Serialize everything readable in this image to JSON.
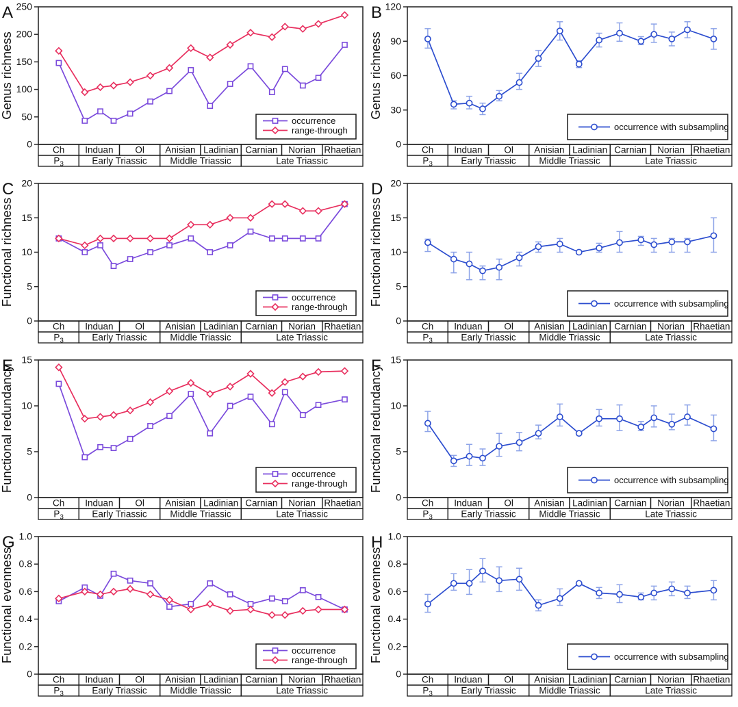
{
  "figure": {
    "colors": {
      "occurrence": "#7B4BDC",
      "range_through": "#E8305F",
      "subsampling": "#2D4ECF",
      "error_bar": "#8EA4E8",
      "frame": "#2b2b2b",
      "table_border": "#1b1b1b"
    },
    "x_axis": {
      "stages": [
        "Ch",
        "Induan",
        "Ol",
        "Anisian",
        "Ladinian",
        "Carnian",
        "Norian",
        "Rhaetian"
      ],
      "epochs": [
        {
          "label": "P₃",
          "span": [
            0,
            1
          ]
        },
        {
          "label": "Early Triassic",
          "span": [
            1,
            3
          ]
        },
        {
          "label": "Middle Triassic",
          "span": [
            3,
            5
          ]
        },
        {
          "label": "Late Triassic",
          "span": [
            5,
            8
          ]
        }
      ],
      "point_positions": [
        0.063,
        0.143,
        0.191,
        0.232,
        0.283,
        0.345,
        0.404,
        0.47,
        0.529,
        0.591,
        0.654,
        0.72,
        0.76,
        0.815,
        0.863,
        0.944
      ]
    },
    "legend_labels": {
      "occurrence": "occurrence",
      "range_through": "range-through",
      "subsampling": "occurrence with subsampling"
    }
  },
  "chart_data": [
    {
      "panel": "A",
      "type": "line",
      "ylabel": "Genus richness",
      "ylim": [
        0,
        250
      ],
      "ytick_labels": [
        "0",
        "50",
        "100",
        "150",
        "200",
        "250"
      ],
      "series": [
        {
          "name": "occurrence",
          "marker": "square",
          "color_key": "occurrence",
          "values": [
            148,
            43,
            60,
            43,
            56,
            78,
            97,
            135,
            70,
            110,
            142,
            95,
            137,
            107,
            121,
            181
          ]
        },
        {
          "name": "range-through",
          "marker": "diamond",
          "color_key": "range_through",
          "values": [
            170,
            95,
            104,
            107,
            113,
            125,
            139,
            175,
            158,
            181,
            203,
            195,
            214,
            210,
            219,
            235
          ]
        }
      ]
    },
    {
      "panel": "B",
      "type": "line",
      "ylabel": "Genus richness",
      "ylim": [
        0,
        120
      ],
      "ytick_labels": [
        "0",
        "30",
        "60",
        "90",
        "120"
      ],
      "series": [
        {
          "name": "occurrence with subsampling",
          "marker": "circle",
          "color_key": "subsampling",
          "values": [
            92,
            35,
            36,
            31,
            42,
            54,
            75,
            99,
            70,
            91,
            97,
            90,
            96,
            92,
            100,
            92
          ],
          "err_lo": [
            84,
            31,
            31,
            26,
            38,
            48,
            68,
            91,
            67,
            85,
            90,
            87,
            89,
            86,
            93,
            83
          ],
          "err_hi": [
            101,
            38,
            42,
            36,
            47,
            62,
            82,
            107,
            73,
            97,
            106,
            94,
            105,
            98,
            107,
            101
          ]
        }
      ]
    },
    {
      "panel": "C",
      "type": "line",
      "ylabel": "Functional richness",
      "ylim": [
        0,
        20
      ],
      "ytick_labels": [
        "0",
        "5",
        "10",
        "15",
        "20"
      ],
      "series": [
        {
          "name": "occurrence",
          "marker": "square",
          "color_key": "occurrence",
          "values": [
            12,
            10,
            11,
            8,
            9,
            10,
            11,
            12,
            10,
            11,
            13,
            12,
            12,
            12,
            12,
            17
          ]
        },
        {
          "name": "range-through",
          "marker": "diamond",
          "color_key": "range_through",
          "values": [
            12,
            11,
            12,
            12,
            12,
            12,
            12,
            14,
            14,
            15,
            15,
            17,
            17,
            16,
            16,
            17
          ]
        }
      ]
    },
    {
      "panel": "D",
      "type": "line",
      "ylabel": "Functional richness",
      "ylim": [
        0,
        20
      ],
      "ytick_labels": [
        "0",
        "5",
        "10",
        "15",
        "20"
      ],
      "series": [
        {
          "name": "occurrence with subsampling",
          "marker": "circle",
          "color_key": "subsampling",
          "values": [
            11.4,
            9.0,
            8.3,
            7.3,
            7.8,
            9.2,
            10.8,
            11.2,
            10.0,
            10.6,
            11.4,
            11.8,
            11.1,
            11.5,
            11.5,
            12.4
          ],
          "err_lo": [
            10.1,
            7.0,
            6.0,
            6.0,
            6.0,
            8.0,
            10.0,
            10.0,
            null,
            10.0,
            10.0,
            11.0,
            10.0,
            10.0,
            10.0,
            10.0
          ],
          "err_hi": [
            11.9,
            10.0,
            10.0,
            8.0,
            9.0,
            10.0,
            11.5,
            12.0,
            null,
            11.3,
            13.0,
            12.3,
            12.0,
            12.0,
            12.0,
            15.0
          ]
        }
      ]
    },
    {
      "panel": "E",
      "type": "line",
      "ylabel": "Functional redundancy",
      "ylim": [
        0,
        15
      ],
      "ytick_labels": [
        "0",
        "5",
        "10",
        "15"
      ],
      "series": [
        {
          "name": "occurrence",
          "marker": "square",
          "color_key": "occurrence",
          "values": [
            12.4,
            4.4,
            5.5,
            5.4,
            6.4,
            7.8,
            8.9,
            11.3,
            7.0,
            10.0,
            11.0,
            8.0,
            11.5,
            9.0,
            10.1,
            10.7
          ]
        },
        {
          "name": "range-through",
          "marker": "diamond",
          "color_key": "range_through",
          "values": [
            14.2,
            8.6,
            8.8,
            9.0,
            9.5,
            10.4,
            11.6,
            12.5,
            11.3,
            12.1,
            13.5,
            11.4,
            12.6,
            13.2,
            13.7,
            13.8
          ]
        }
      ]
    },
    {
      "panel": "F",
      "type": "line",
      "ylabel": "Functional redundancy",
      "ylim": [
        0,
        15
      ],
      "ytick_labels": [
        "0",
        "5",
        "10",
        "15"
      ],
      "series": [
        {
          "name": "occurrence with subsampling",
          "marker": "circle",
          "color_key": "subsampling",
          "values": [
            8.1,
            4.0,
            4.5,
            4.3,
            5.6,
            6.0,
            7.0,
            8.8,
            7.0,
            8.6,
            8.6,
            7.7,
            8.7,
            8.0,
            8.8,
            7.5
          ],
          "err_lo": [
            7.2,
            3.4,
            3.5,
            3.5,
            4.5,
            5.1,
            6.4,
            7.8,
            null,
            7.8,
            7.3,
            7.3,
            7.7,
            7.4,
            7.9,
            6.2
          ],
          "err_hi": [
            9.4,
            4.6,
            5.8,
            5.3,
            7.0,
            7.1,
            7.9,
            10.2,
            null,
            9.6,
            10.1,
            8.3,
            10.0,
            9.1,
            10.1,
            9.0
          ]
        }
      ]
    },
    {
      "panel": "G",
      "type": "line",
      "ylabel": "Functional evenness",
      "ylim": [
        0,
        1.0
      ],
      "ytick_labels": [
        "0",
        "0.2",
        "0.4",
        "0.6",
        "0.8",
        "1.0"
      ],
      "series": [
        {
          "name": "occurrence",
          "marker": "square",
          "color_key": "occurrence",
          "values": [
            0.53,
            0.63,
            0.57,
            0.73,
            0.68,
            0.66,
            0.49,
            0.51,
            0.66,
            0.58,
            0.51,
            0.55,
            0.53,
            0.61,
            0.56,
            0.47
          ]
        },
        {
          "name": "range-through",
          "marker": "diamond",
          "color_key": "range_through",
          "values": [
            0.55,
            0.6,
            0.58,
            0.6,
            0.62,
            0.58,
            0.54,
            0.47,
            0.51,
            0.46,
            0.47,
            0.43,
            0.43,
            0.46,
            0.47,
            0.47
          ]
        }
      ]
    },
    {
      "panel": "H",
      "type": "line",
      "ylabel": "Functional evenness",
      "ylim": [
        0,
        1.0
      ],
      "ytick_labels": [
        "0",
        "0.2",
        "0.4",
        "0.6",
        "0.8",
        "1.0"
      ],
      "series": [
        {
          "name": "occurrence with subsampling",
          "marker": "circle",
          "color_key": "subsampling",
          "values": [
            0.51,
            0.66,
            0.66,
            0.75,
            0.68,
            0.69,
            0.5,
            0.55,
            0.66,
            0.59,
            0.58,
            0.56,
            0.59,
            0.62,
            0.59,
            0.61
          ],
          "err_lo": [
            0.45,
            0.61,
            0.58,
            0.67,
            0.6,
            0.61,
            0.46,
            0.5,
            null,
            0.55,
            0.52,
            0.54,
            0.54,
            0.57,
            0.55,
            0.54
          ],
          "err_hi": [
            0.58,
            0.73,
            0.76,
            0.84,
            0.78,
            0.77,
            0.54,
            0.62,
            null,
            0.63,
            0.65,
            0.59,
            0.64,
            0.67,
            0.64,
            0.68
          ]
        }
      ]
    }
  ]
}
